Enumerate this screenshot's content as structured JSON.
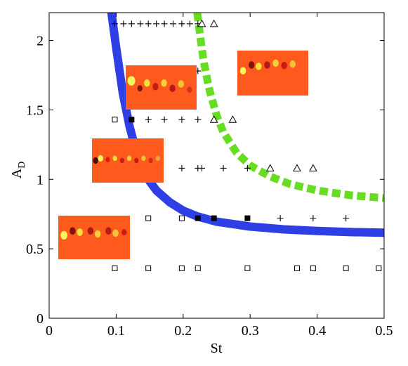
{
  "chart_data": {
    "type": "scatter",
    "xlabel": "St",
    "ylabel": "A",
    "ylabel_subscript": "D",
    "xlim": [
      0,
      0.5
    ],
    "ylim": [
      0,
      2.2
    ],
    "xticks": [
      0,
      0.1,
      0.2,
      0.3,
      0.4,
      0.5
    ],
    "xtick_labels": [
      "0",
      "0.1",
      "0.2",
      "0.3",
      "0.4",
      "0.5"
    ],
    "yticks": [
      0,
      0.5,
      1,
      1.5,
      2
    ],
    "ytick_labels": [
      "0",
      "0.5",
      "1",
      "1.5",
      "2"
    ],
    "grid": false,
    "series": [
      {
        "marker": "open-square",
        "points": [
          [
            0.098,
            0.36
          ],
          [
            0.148,
            0.36
          ],
          [
            0.198,
            0.36
          ],
          [
            0.222,
            0.36
          ],
          [
            0.296,
            0.36
          ],
          [
            0.37,
            0.36
          ],
          [
            0.394,
            0.36
          ],
          [
            0.443,
            0.36
          ],
          [
            0.492,
            0.36
          ],
          [
            0.148,
            0.72
          ],
          [
            0.198,
            0.72
          ],
          [
            0.098,
            1.43
          ]
        ]
      },
      {
        "marker": "filled-square",
        "points": [
          [
            0.222,
            0.72
          ],
          [
            0.246,
            0.72
          ],
          [
            0.296,
            0.72
          ],
          [
            0.123,
            1.43
          ]
        ]
      },
      {
        "marker": "plus",
        "points": [
          [
            0.345,
            0.72
          ],
          [
            0.394,
            0.72
          ],
          [
            0.443,
            0.72
          ],
          [
            0.198,
            1.08
          ],
          [
            0.222,
            1.08
          ],
          [
            0.228,
            1.08
          ],
          [
            0.26,
            1.08
          ],
          [
            0.296,
            1.08
          ],
          [
            0.148,
            1.43
          ],
          [
            0.172,
            1.43
          ],
          [
            0.198,
            1.43
          ],
          [
            0.222,
            1.43
          ],
          [
            0.222,
            1.78
          ],
          [
            0.098,
            2.12
          ],
          [
            0.111,
            2.12
          ],
          [
            0.123,
            2.12
          ],
          [
            0.136,
            2.12
          ],
          [
            0.148,
            2.12
          ],
          [
            0.16,
            2.12
          ],
          [
            0.172,
            2.12
          ],
          [
            0.185,
            2.12
          ],
          [
            0.198,
            2.12
          ],
          [
            0.21,
            2.12
          ],
          [
            0.222,
            2.12
          ]
        ]
      },
      {
        "marker": "open-triangle",
        "points": [
          [
            0.33,
            1.08
          ],
          [
            0.37,
            1.08
          ],
          [
            0.394,
            1.08
          ],
          [
            0.246,
            1.43
          ],
          [
            0.274,
            1.43
          ],
          [
            0.228,
            2.12
          ],
          [
            0.246,
            2.12
          ]
        ]
      }
    ],
    "curves": [
      {
        "color": "#2f3fe6",
        "style": "solid",
        "points": [
          [
            0.093,
            2.2
          ],
          [
            0.1,
            1.95
          ],
          [
            0.11,
            1.62
          ],
          [
            0.12,
            1.38
          ],
          [
            0.13,
            1.2
          ],
          [
            0.14,
            1.07
          ],
          [
            0.15,
            0.985
          ],
          [
            0.16,
            0.92
          ],
          [
            0.18,
            0.835
          ],
          [
            0.2,
            0.775
          ],
          [
            0.22,
            0.735
          ],
          [
            0.25,
            0.695
          ],
          [
            0.3,
            0.66
          ],
          [
            0.35,
            0.64
          ],
          [
            0.4,
            0.628
          ],
          [
            0.45,
            0.62
          ],
          [
            0.5,
            0.616
          ]
        ]
      },
      {
        "color": "#66dd22",
        "style": "dotted",
        "points": [
          [
            0.221,
            2.2
          ],
          [
            0.225,
            2.05
          ],
          [
            0.23,
            1.87
          ],
          [
            0.235,
            1.74
          ],
          [
            0.24,
            1.63
          ],
          [
            0.25,
            1.46
          ],
          [
            0.26,
            1.34
          ],
          [
            0.28,
            1.19
          ],
          [
            0.3,
            1.1
          ],
          [
            0.33,
            1.02
          ],
          [
            0.36,
            0.965
          ],
          [
            0.4,
            0.92
          ],
          [
            0.45,
            0.885
          ],
          [
            0.5,
            0.865
          ]
        ]
      }
    ],
    "insets": [
      {
        "name": "inset-top-left",
        "near": [
          0.2,
          1.65
        ],
        "spots": [
          [
            0.08,
            0.35,
            0.09,
            "#f6ff60"
          ],
          [
            0.2,
            0.52,
            0.06,
            "#7a1010"
          ],
          [
            0.3,
            0.4,
            0.07,
            "#f4e838"
          ],
          [
            0.42,
            0.48,
            0.07,
            "#c21a10"
          ],
          [
            0.54,
            0.4,
            0.07,
            "#f2d838"
          ],
          [
            0.66,
            0.52,
            0.07,
            "#b01818"
          ],
          [
            0.78,
            0.42,
            0.07,
            "#f0c838"
          ],
          [
            0.9,
            0.55,
            0.06,
            "#c83818"
          ]
        ]
      },
      {
        "name": "inset-top-right",
        "near": [
          0.33,
          1.9
        ],
        "spots": [
          [
            0.08,
            0.45,
            0.07,
            "#f6ff60"
          ],
          [
            0.2,
            0.32,
            0.07,
            "#7a1010"
          ],
          [
            0.3,
            0.35,
            0.07,
            "#f4e838"
          ],
          [
            0.42,
            0.32,
            0.07,
            "#b01818"
          ],
          [
            0.54,
            0.28,
            0.07,
            "#f2d838"
          ],
          [
            0.66,
            0.33,
            0.07,
            "#c81818"
          ],
          [
            0.78,
            0.3,
            0.07,
            "#f0c838"
          ]
        ]
      },
      {
        "name": "inset-middle",
        "near": [
          0.12,
          1.1
        ],
        "spots": [
          [
            0.05,
            0.5,
            0.06,
            "#400808"
          ],
          [
            0.12,
            0.45,
            0.06,
            "#f6ff60"
          ],
          [
            0.22,
            0.48,
            0.05,
            "#d81818"
          ],
          [
            0.32,
            0.45,
            0.05,
            "#f4e838"
          ],
          [
            0.42,
            0.5,
            0.05,
            "#c81818"
          ],
          [
            0.52,
            0.45,
            0.05,
            "#f2d838"
          ],
          [
            0.62,
            0.5,
            0.05,
            "#c81818"
          ],
          [
            0.72,
            0.45,
            0.05,
            "#f0c838"
          ],
          [
            0.82,
            0.5,
            0.05,
            "#d02818"
          ],
          [
            0.92,
            0.45,
            0.05,
            "#f0a838"
          ]
        ]
      },
      {
        "name": "inset-bottom-left",
        "near": [
          0.05,
          0.55
        ],
        "spots": [
          [
            0.08,
            0.45,
            0.08,
            "#f6ff60"
          ],
          [
            0.2,
            0.35,
            0.07,
            "#7a1010"
          ],
          [
            0.3,
            0.38,
            0.07,
            "#f4e838"
          ],
          [
            0.45,
            0.35,
            0.07,
            "#a81818"
          ],
          [
            0.55,
            0.42,
            0.07,
            "#f2d838"
          ],
          [
            0.7,
            0.35,
            0.07,
            "#b01818"
          ],
          [
            0.8,
            0.4,
            0.07,
            "#f0c838"
          ],
          [
            0.92,
            0.38,
            0.06,
            "#c81818"
          ]
        ]
      }
    ],
    "colors": {
      "axis": "#000000",
      "inset_background": "#ff5a1e",
      "blue_curve": "#2f3fe6",
      "green_curve": "#66dd22"
    }
  }
}
